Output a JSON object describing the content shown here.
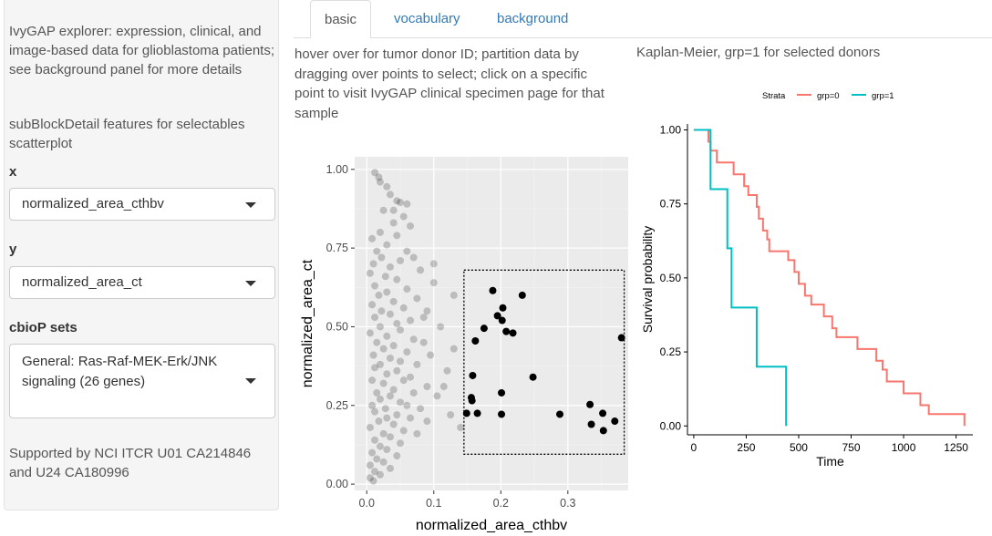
{
  "sidebar": {
    "intro": "IvyGAP explorer: expression, clinical, and image-based data for glioblastoma patients; see background panel for more details",
    "feature_note": "subBlockDetail features for selectables scatterplot",
    "x_label": "x",
    "x_value": "normalized_area_cthbv",
    "y_label": "y",
    "y_value": "normalized_area_ct",
    "sets_label": "cbioP sets",
    "sets_value_line1": "General: Ras-Raf-MEK-Erk/JNK",
    "sets_value_line2": "signaling (26 genes)",
    "support_line1": "Supported by NCI ITCR U01 CA214846",
    "support_line2": "and U24 CA180996"
  },
  "tabs": [
    {
      "label": "basic",
      "active": true
    },
    {
      "label": "vocabulary",
      "active": false
    },
    {
      "label": "background",
      "active": false
    }
  ],
  "description": {
    "line1": "hover over for tumor donor ID; partition data by",
    "line2": "dragging over points to select; click on a specific",
    "line3": "point to visit IvyGAP clinical specimen page for that",
    "line4": "sample"
  },
  "km_title": "Kaplan-Meier, grp=1 for selected donors",
  "colors": {
    "tab_link": "#337ab7",
    "grp0": "#F8766D",
    "grp1": "#00BFC4",
    "panel_bg": "#EBEBEB",
    "point": "#000000"
  },
  "chart_data": [
    {
      "type": "scatter",
      "title": "",
      "xlabel": "normalized_area_cthbv",
      "ylabel": "normalized_area_ct",
      "xlim": [
        -0.018,
        0.39
      ],
      "ylim": [
        -0.02,
        1.04
      ],
      "x_ticks": [
        "0.0",
        "0.1",
        "0.2",
        "0.3"
      ],
      "y_ticks": [
        "0.00",
        "0.25",
        "0.50",
        "0.75",
        "1.00"
      ],
      "grid": true,
      "selection_box": {
        "x": [
          0.145,
          0.384
        ],
        "y": [
          0.095,
          0.68
        ]
      },
      "series": [
        {
          "name": "selected",
          "points": [
            [
              0.188,
              0.615
            ],
            [
              0.232,
              0.6
            ],
            [
              0.203,
              0.56
            ],
            [
              0.195,
              0.535
            ],
            [
              0.202,
              0.52
            ],
            [
              0.175,
              0.495
            ],
            [
              0.208,
              0.485
            ],
            [
              0.218,
              0.48
            ],
            [
              0.162,
              0.455
            ],
            [
              0.38,
              0.465
            ],
            [
              0.158,
              0.345
            ],
            [
              0.248,
              0.34
            ],
            [
              0.201,
              0.29
            ],
            [
              0.156,
              0.275
            ],
            [
              0.157,
              0.265
            ],
            [
              0.149,
              0.225
            ],
            [
              0.165,
              0.225
            ],
            [
              0.201,
              0.222
            ],
            [
              0.288,
              0.222
            ],
            [
              0.333,
              0.253
            ],
            [
              0.352,
              0.225
            ],
            [
              0.37,
              0.2
            ],
            [
              0.335,
              0.19
            ],
            [
              0.353,
              0.17
            ]
          ]
        },
        {
          "name": "unselected",
          "points": [
            [
              0.012,
              0.99
            ],
            [
              0.018,
              0.975
            ],
            [
              0.03,
              0.945
            ],
            [
              0.035,
              0.92
            ],
            [
              0.045,
              0.9
            ],
            [
              0.05,
              0.895
            ],
            [
              0.06,
              0.89
            ],
            [
              0.025,
              0.87
            ],
            [
              0.055,
              0.85
            ],
            [
              0.04,
              0.83
            ],
            [
              0.065,
              0.82
            ],
            [
              0.02,
              0.8
            ],
            [
              0.045,
              0.79
            ],
            [
              0.008,
              0.78
            ],
            [
              0.03,
              0.76
            ],
            [
              0.015,
              0.74
            ],
            [
              0.06,
              0.74
            ],
            [
              0.022,
              0.72
            ],
            [
              0.05,
              0.71
            ],
            [
              0.01,
              0.7
            ],
            [
              0.035,
              0.69
            ],
            [
              0.08,
              0.68
            ],
            [
              0.005,
              0.67
            ],
            [
              0.028,
              0.66
            ],
            [
              0.045,
              0.65
            ],
            [
              0.1,
              0.64
            ],
            [
              0.012,
              0.63
            ],
            [
              0.06,
              0.62
            ],
            [
              0.03,
              0.61
            ],
            [
              0.018,
              0.6
            ],
            [
              0.075,
              0.59
            ],
            [
              0.04,
              0.58
            ],
            [
              0.008,
              0.57
            ],
            [
              0.055,
              0.56
            ],
            [
              0.022,
              0.55
            ],
            [
              0.09,
              0.55
            ],
            [
              0.035,
              0.54
            ],
            [
              0.012,
              0.53
            ],
            [
              0.065,
              0.52
            ],
            [
              0.045,
              0.51
            ],
            [
              0.02,
              0.5
            ],
            [
              0.11,
              0.5
            ],
            [
              0.05,
              0.49
            ],
            [
              0.005,
              0.48
            ],
            [
              0.03,
              0.47
            ],
            [
              0.07,
              0.46
            ],
            [
              0.015,
              0.45
            ],
            [
              0.085,
              0.45
            ],
            [
              0.04,
              0.44
            ],
            [
              0.025,
              0.43
            ],
            [
              0.06,
              0.42
            ],
            [
              0.01,
              0.41
            ],
            [
              0.095,
              0.41
            ],
            [
              0.035,
              0.4
            ],
            [
              0.05,
              0.39
            ],
            [
              0.02,
              0.38
            ],
            [
              0.075,
              0.38
            ],
            [
              0.012,
              0.37
            ],
            [
              0.045,
              0.36
            ],
            [
              0.12,
              0.36
            ],
            [
              0.03,
              0.35
            ],
            [
              0.065,
              0.34
            ],
            [
              0.008,
              0.33
            ],
            [
              0.055,
              0.33
            ],
            [
              0.025,
              0.32
            ],
            [
              0.09,
              0.31
            ],
            [
              0.04,
              0.3
            ],
            [
              0.015,
              0.29
            ],
            [
              0.07,
              0.29
            ],
            [
              0.035,
              0.28
            ],
            [
              0.105,
              0.28
            ],
            [
              0.02,
              0.27
            ],
            [
              0.05,
              0.26
            ],
            [
              0.008,
              0.25
            ],
            [
              0.06,
              0.25
            ],
            [
              0.028,
              0.24
            ],
            [
              0.08,
              0.24
            ],
            [
              0.012,
              0.23
            ],
            [
              0.045,
              0.22
            ],
            [
              0.125,
              0.22
            ],
            [
              0.03,
              0.21
            ],
            [
              0.065,
              0.21
            ],
            [
              0.018,
              0.2
            ],
            [
              0.09,
              0.2
            ],
            [
              0.04,
              0.19
            ],
            [
              0.005,
              0.18
            ],
            [
              0.055,
              0.17
            ],
            [
              0.025,
              0.16
            ],
            [
              0.075,
              0.16
            ],
            [
              0.035,
              0.15
            ],
            [
              0.012,
              0.14
            ],
            [
              0.05,
              0.13
            ],
            [
              0.02,
              0.12
            ],
            [
              0.03,
              0.11
            ],
            [
              0.008,
              0.1
            ],
            [
              0.045,
              0.09
            ],
            [
              0.015,
              0.08
            ],
            [
              0.025,
              0.07
            ],
            [
              0.005,
              0.06
            ],
            [
              0.035,
              0.05
            ],
            [
              0.012,
              0.04
            ],
            [
              0.02,
              0.03
            ],
            [
              0.005,
              0.02
            ],
            [
              0.01,
              0.01
            ],
            [
              0.13,
              0.6
            ],
            [
              0.115,
              0.31
            ],
            [
              0.14,
              0.18
            ],
            [
              0.085,
              0.53
            ],
            [
              0.1,
              0.7
            ],
            [
              0.07,
              0.72
            ],
            [
              0.13,
              0.43
            ],
            [
              0.02,
              0.96
            ],
            [
              0.04,
              0.87
            ]
          ]
        }
      ]
    },
    {
      "type": "line",
      "title": "",
      "xlabel": "Time",
      "ylabel": "Survival probability",
      "xlim": [
        -30,
        1330
      ],
      "ylim": [
        -0.03,
        1.02
      ],
      "x_ticks": [
        "0",
        "250",
        "500",
        "750",
        "1000",
        "1250"
      ],
      "y_ticks": [
        "0.00",
        "0.25",
        "0.50",
        "0.75",
        "1.00"
      ],
      "grid": false,
      "legend_title": "Strata",
      "legend_position": "top",
      "series": [
        {
          "name": "grp=0",
          "x": [
            0,
            60,
            70,
            80,
            110,
            180,
            190,
            190,
            240,
            260,
            300,
            310,
            320,
            330,
            350,
            360,
            420,
            450,
            480,
            500,
            530,
            560,
            620,
            660,
            680,
            700,
            760,
            780,
            800,
            850,
            870,
            900,
            920,
            950,
            1000,
            1030,
            1080,
            1120,
            1250,
            1290
          ],
          "y": [
            1.0,
            1.0,
            0.96,
            0.93,
            0.89,
            0.89,
            0.85,
            0.85,
            0.81,
            0.78,
            0.74,
            0.7,
            0.7,
            0.66,
            0.63,
            0.59,
            0.59,
            0.56,
            0.52,
            0.48,
            0.44,
            0.41,
            0.37,
            0.33,
            0.3,
            0.3,
            0.3,
            0.26,
            0.26,
            0.26,
            0.22,
            0.19,
            0.15,
            0.15,
            0.11,
            0.11,
            0.07,
            0.04,
            0.04,
            0.0
          ]
        },
        {
          "name": "grp=1",
          "x": [
            0,
            60,
            80,
            160,
            180,
            300,
            440,
            440
          ],
          "y": [
            1.0,
            1.0,
            0.8,
            0.6,
            0.4,
            0.2,
            0.2,
            0.0
          ]
        }
      ]
    }
  ]
}
